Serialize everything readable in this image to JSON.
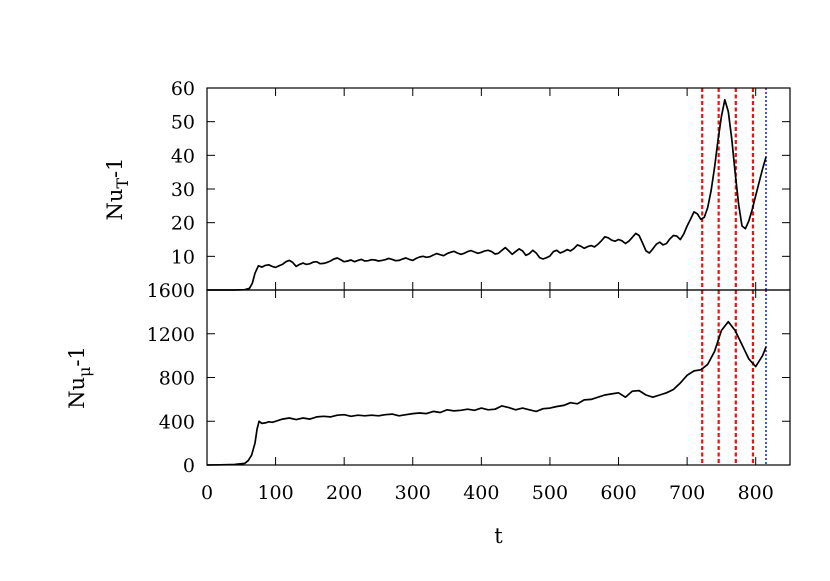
{
  "chart_data": [
    {
      "type": "line",
      "panel": "top",
      "ylabel": {
        "base": "Nu",
        "sub": "T",
        "suffix": "-1"
      },
      "xlim": [
        0,
        850
      ],
      "ylim": [
        0,
        60
      ],
      "yticks": [
        10,
        20,
        30,
        40,
        50,
        60
      ],
      "series": [
        {
          "color": "#000000",
          "x": [
            0,
            20,
            40,
            55,
            62,
            66,
            70,
            75,
            80,
            85,
            90,
            95,
            100,
            105,
            110,
            115,
            120,
            125,
            130,
            135,
            140,
            145,
            150,
            155,
            160,
            165,
            170,
            175,
            180,
            185,
            190,
            195,
            200,
            205,
            210,
            215,
            220,
            225,
            230,
            235,
            240,
            245,
            250,
            255,
            260,
            265,
            270,
            275,
            280,
            285,
            290,
            295,
            300,
            305,
            310,
            315,
            320,
            325,
            330,
            335,
            340,
            345,
            350,
            355,
            360,
            365,
            370,
            375,
            380,
            385,
            390,
            395,
            400,
            405,
            410,
            415,
            420,
            425,
            430,
            435,
            440,
            445,
            450,
            455,
            460,
            465,
            470,
            475,
            480,
            485,
            490,
            495,
            500,
            505,
            510,
            515,
            520,
            525,
            530,
            535,
            540,
            545,
            550,
            555,
            560,
            565,
            570,
            575,
            580,
            585,
            590,
            595,
            600,
            605,
            610,
            615,
            620,
            625,
            630,
            635,
            640,
            645,
            650,
            655,
            660,
            665,
            670,
            675,
            680,
            685,
            690,
            695,
            700,
            705,
            710,
            715,
            720,
            725,
            730,
            735,
            740,
            745,
            750,
            755,
            760,
            765,
            770,
            775,
            780,
            785,
            790,
            795,
            800,
            805,
            810,
            815
          ],
          "y": [
            0,
            0,
            0,
            0.1,
            0.5,
            2,
            5,
            7.2,
            6.8,
            7.3,
            7.5,
            7.0,
            6.7,
            7.2,
            7.6,
            8.4,
            8.8,
            8.2,
            7.0,
            7.6,
            8.0,
            7.6,
            7.8,
            8.3,
            8.4,
            7.8,
            7.9,
            8.2,
            8.6,
            9.2,
            9.5,
            9.0,
            8.4,
            8.6,
            8.9,
            8.4,
            8.8,
            9.1,
            8.6,
            8.7,
            9.0,
            8.9,
            8.6,
            8.8,
            9.0,
            9.4,
            9.1,
            8.7,
            8.8,
            9.2,
            9.5,
            9.1,
            8.8,
            9.4,
            9.8,
            10.0,
            9.7,
            9.9,
            10.4,
            10.8,
            10.5,
            10.2,
            10.8,
            11.2,
            11.5,
            11.0,
            10.6,
            10.9,
            11.4,
            11.7,
            11.3,
            10.9,
            11.2,
            11.6,
            11.8,
            11.4,
            10.7,
            10.9,
            11.8,
            12.6,
            11.6,
            10.6,
            11.4,
            12.2,
            11.6,
            10.3,
            10.8,
            11.8,
            11.0,
            9.6,
            9.2,
            9.6,
            10.1,
            11.4,
            11.8,
            11.0,
            11.4,
            12.0,
            11.6,
            12.3,
            13.4,
            13.0,
            12.4,
            12.9,
            13.2,
            12.8,
            13.6,
            14.6,
            15.8,
            15.5,
            14.8,
            14.5,
            15.0,
            14.6,
            13.8,
            14.5,
            15.6,
            16.8,
            16.2,
            14.0,
            11.6,
            11.0,
            12.2,
            13.6,
            14.2,
            13.4,
            13.8,
            15.2,
            16.2,
            16.0,
            15.0,
            16.6,
            19.0,
            21.0,
            23.2,
            22.6,
            21.0,
            21.6,
            24.5,
            29.5,
            36.5,
            44.5,
            51.5,
            56.5,
            53.0,
            45.0,
            35.0,
            25.5,
            19.0,
            18.2,
            20.5,
            24.0,
            28.0,
            32.0,
            36.0,
            39.5
          ]
        }
      ]
    },
    {
      "type": "line",
      "panel": "bottom",
      "xlabel": "t",
      "ylabel": {
        "base": "Nu",
        "sub": "μ",
        "suffix": "-1"
      },
      "xlim": [
        0,
        850
      ],
      "ylim": [
        0,
        1600
      ],
      "yticks": [
        0,
        400,
        800,
        1200,
        1600
      ],
      "xticks": [
        0,
        100,
        200,
        300,
        400,
        500,
        600,
        700,
        800
      ],
      "series": [
        {
          "color": "#000000",
          "x": [
            0,
            20,
            40,
            55,
            60,
            65,
            70,
            73,
            76,
            80,
            85,
            90,
            95,
            100,
            110,
            120,
            130,
            140,
            150,
            160,
            170,
            180,
            190,
            200,
            210,
            220,
            230,
            240,
            250,
            260,
            270,
            280,
            290,
            300,
            310,
            320,
            330,
            340,
            350,
            360,
            370,
            380,
            390,
            400,
            410,
            420,
            430,
            440,
            450,
            460,
            470,
            480,
            490,
            500,
            510,
            520,
            530,
            540,
            550,
            560,
            570,
            580,
            590,
            600,
            610,
            620,
            630,
            640,
            650,
            660,
            670,
            680,
            690,
            700,
            710,
            720,
            730,
            740,
            750,
            760,
            770,
            780,
            790,
            800,
            810,
            815
          ],
          "y": [
            0,
            2,
            5,
            15,
            40,
            90,
            200,
            330,
            400,
            380,
            385,
            395,
            390,
            400,
            420,
            430,
            415,
            430,
            420,
            440,
            445,
            440,
            455,
            460,
            445,
            455,
            450,
            455,
            450,
            460,
            465,
            450,
            460,
            470,
            475,
            470,
            490,
            480,
            505,
            495,
            500,
            510,
            500,
            520,
            505,
            510,
            540,
            525,
            505,
            520,
            505,
            490,
            515,
            520,
            535,
            545,
            570,
            560,
            595,
            600,
            620,
            640,
            650,
            660,
            620,
            675,
            680,
            640,
            620,
            640,
            660,
            690,
            750,
            820,
            860,
            870,
            920,
            1040,
            1230,
            1310,
            1230,
            1100,
            970,
            900,
            1000,
            1080
          ]
        }
      ]
    }
  ],
  "markers": {
    "red_lines_t": [
      722,
      746,
      771,
      796
    ],
    "red_color": "#ee1111",
    "blue_line_t": 815,
    "blue_color": "#1133cc"
  }
}
